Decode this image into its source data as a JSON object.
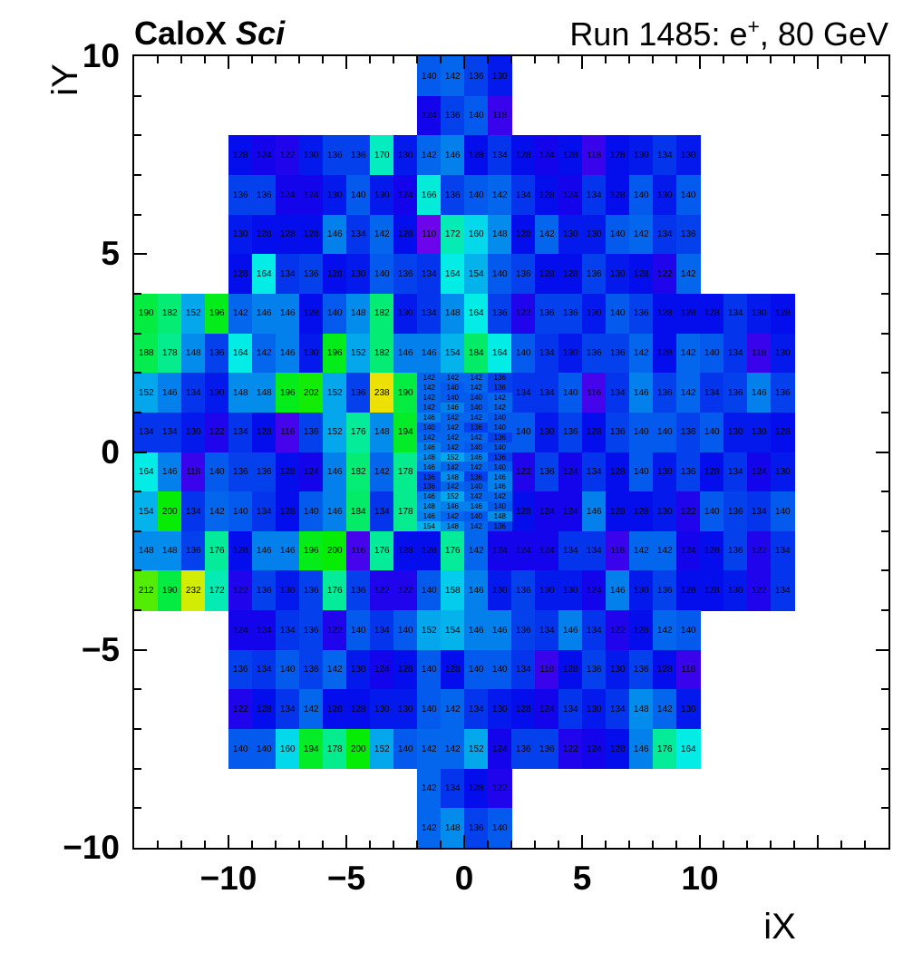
{
  "title": {
    "left_bold": "CaloX ",
    "left_italic": "Sci",
    "right_main": "Run 1485: e",
    "right_sup": "+",
    "right_tail": ", 80 GeV"
  },
  "colors": {
    "background": "#ffffff",
    "frame": "#000000",
    "cell_text": "#000000"
  },
  "chart_data": {
    "type": "heatmap",
    "title_left": "CaloX Sci",
    "title_right": "Run 1485: e+, 80 GeV",
    "xlabel": "iX",
    "ylabel": "iY",
    "xlim": [
      -14,
      18
    ],
    "ylim": [
      -10,
      10
    ],
    "xticks": [
      -10,
      -5,
      0,
      5,
      10
    ],
    "yticks": [
      -10,
      -5,
      0,
      5,
      10
    ],
    "minor_tick_step": 1,
    "grid": false,
    "palette": {
      "zmin": 110,
      "zmax": 238,
      "hue_at_min": 267,
      "hue_at_max": 57,
      "saturation": 97,
      "lightness": 47
    },
    "rows": [
      {
        "y": 9,
        "segments": [
          {
            "x0": -2,
            "values": [
              140,
              142,
              136,
              130
            ]
          }
        ]
      },
      {
        "y": 8,
        "segments": [
          {
            "x0": -2,
            "values": [
              124,
              136,
              140,
              118
            ]
          }
        ]
      },
      {
        "y": 7,
        "segments": [
          {
            "x0": -10,
            "values": [
              128,
              124,
              122,
              130,
              136,
              136,
              170,
              130,
              142,
              146,
              128,
              134,
              128,
              124,
              128,
              118,
              128,
              130,
              134,
              130
            ]
          }
        ]
      },
      {
        "y": 6,
        "segments": [
          {
            "x0": -10,
            "values": [
              136,
              136,
              124,
              124,
              130,
              140,
              130,
              124,
              166,
              136,
              140,
              142,
              134,
              128,
              124,
              134,
              128,
              140,
              130,
              140
            ]
          }
        ]
      },
      {
        "y": 5,
        "segments": [
          {
            "x0": -10,
            "values": [
              130,
              128,
              128,
              128,
              146,
              134,
              142,
              128,
              110,
              172,
              160,
              148,
              128,
              142,
              130,
              130,
              140,
              142,
              134,
              136
            ]
          }
        ]
      },
      {
        "y": 4,
        "segments": [
          {
            "x0": -10,
            "values": [
              128,
              164,
              134,
              136,
              128,
              130,
              140,
              136,
              134,
              164,
              154,
              140,
              136,
              128,
              128,
              136,
              130,
              128,
              122,
              142
            ]
          }
        ]
      },
      {
        "y": 3,
        "segments": [
          {
            "x0": -14,
            "values": [
              190,
              182,
              152,
              196,
              142,
              146,
              146,
              128,
              140,
              148,
              182,
              130,
              134,
              148,
              164,
              136,
              122,
              136,
              136,
              130,
              140,
              136,
              128,
              128,
              128,
              134,
              130,
              128
            ]
          }
        ]
      },
      {
        "y": 2,
        "segments": [
          {
            "x0": -14,
            "values": [
              188,
              178,
              148,
              136,
              164,
              142,
              146,
              130,
              196,
              152,
              182,
              146,
              146,
              154,
              184,
              164,
              140,
              134,
              130,
              136,
              136,
              142,
              128,
              142,
              140,
              134,
              118,
              130
            ]
          }
        ]
      },
      {
        "y": 1,
        "segments": [
          {
            "x0": -14,
            "values": [
              152,
              146,
              134,
              130,
              148,
              148,
              196,
              202,
              152,
              136,
              238,
              190
            ]
          },
          {
            "x0": 2,
            "values": [
              134,
              134,
              140,
              116,
              134,
              146,
              136,
              142,
              134,
              136,
              146,
              136
            ]
          }
        ]
      },
      {
        "y": 0,
        "segments": [
          {
            "x0": -14,
            "values": [
              134,
              134,
              130,
              122,
              134,
              128,
              116,
              136,
              152,
              176,
              148,
              194
            ]
          },
          {
            "x0": 2,
            "values": [
              140,
              130,
              136,
              128,
              136,
              140,
              140,
              136,
              140,
              130,
              130,
              128
            ]
          }
        ]
      },
      {
        "y": -1,
        "segments": [
          {
            "x0": -14,
            "values": [
              164,
              146,
              118,
              140,
              136,
              136,
              128,
              124,
              146,
              182,
              142,
              178
            ]
          },
          {
            "x0": 2,
            "values": [
              122,
              136,
              124,
              134,
              128,
              140,
              130,
              136,
              128,
              134,
              124,
              130
            ]
          }
        ]
      },
      {
        "y": -2,
        "segments": [
          {
            "x0": -14,
            "values": [
              154,
              200,
              134,
              142,
              140,
              134,
              128,
              140,
              146,
              184,
              134,
              178
            ]
          },
          {
            "x0": 2,
            "values": [
              128,
              124,
              124,
              146,
              128,
              128,
              130,
              122,
              140,
              136,
              134,
              140
            ]
          }
        ]
      },
      {
        "y": -3,
        "segments": [
          {
            "x0": -14,
            "values": [
              148,
              148,
              136,
              176,
              128,
              146,
              146,
              196,
              200,
              116,
              176,
              128,
              128,
              176,
              142,
              124,
              124,
              124,
              134,
              134,
              118,
              142,
              142,
              124,
              128,
              136,
              122,
              134
            ]
          }
        ]
      },
      {
        "y": -4,
        "segments": [
          {
            "x0": -14,
            "values": [
              212,
              190,
              232,
              172,
              122,
              136,
              130,
              136,
              176,
              136,
              122,
              122,
              140,
              158,
              146,
              130,
              136,
              130,
              130,
              124,
              146,
              130,
              136,
              128,
              128,
              130,
              122,
              134
            ]
          }
        ]
      },
      {
        "y": -5,
        "segments": [
          {
            "x0": -10,
            "values": [
              124,
              124,
              134,
              136,
              122,
              140,
              134,
              140,
              152,
              154,
              146,
              146,
              136,
              134,
              146,
              134,
              122,
              128,
              142,
              140
            ]
          }
        ]
      },
      {
        "y": -6,
        "segments": [
          {
            "x0": -10,
            "values": [
              136,
              134,
              140,
              136,
              142,
              130,
              124,
              128,
              140,
              128,
              140,
              140,
              134,
              118,
              128,
              136,
              130,
              136,
              128,
              118
            ]
          }
        ]
      },
      {
        "y": -7,
        "segments": [
          {
            "x0": -10,
            "values": [
              122,
              128,
              134,
              142,
              128,
              128,
              130,
              130,
              140,
              142,
              134,
              130,
              128,
              124,
              134,
              130,
              134,
              148,
              142,
              130
            ]
          }
        ]
      },
      {
        "y": -8,
        "segments": [
          {
            "x0": -10,
            "values": [
              140,
              140,
              160,
              194,
              178,
              200,
              152,
              140,
              142,
              142,
              152,
              124,
              136,
              136,
              122,
              124,
              128,
              146,
              176,
              164
            ]
          }
        ]
      },
      {
        "y": -9,
        "segments": [
          {
            "x0": -2,
            "values": [
              142,
              134,
              128,
              122
            ]
          }
        ]
      },
      {
        "y": -10,
        "segments": [
          {
            "x0": -2,
            "values": [
              142,
              148,
              136,
              140
            ]
          }
        ]
      }
    ],
    "fine_block": {
      "x0": -2,
      "cols": 4,
      "cell_w": 1,
      "cell_h": 0.25,
      "rows": [
        {
          "y": 1.75,
          "values": [
            142,
            142,
            142,
            136
          ]
        },
        {
          "y": 1.5,
          "values": [
            142,
            140,
            142,
            136
          ]
        },
        {
          "y": 1.25,
          "values": [
            142,
            140,
            140,
            142
          ]
        },
        {
          "y": 1.0,
          "values": [
            142,
            146,
            140,
            142
          ]
        },
        {
          "y": 0.75,
          "values": [
            146,
            142,
            142,
            140
          ]
        },
        {
          "y": 0.5,
          "values": [
            140,
            142,
            136,
            140
          ]
        },
        {
          "y": 0.25,
          "values": [
            142,
            142,
            142,
            136
          ]
        },
        {
          "y": 0.0,
          "values": [
            146,
            142,
            140,
            140
          ]
        },
        {
          "y": -0.25,
          "values": [
            148,
            152,
            146,
            136
          ]
        },
        {
          "y": -0.5,
          "values": [
            146,
            142,
            142,
            140
          ]
        },
        {
          "y": -0.75,
          "values": [
            136,
            148,
            136,
            146
          ]
        },
        {
          "y": -1.0,
          "values": [
            136,
            142,
            140,
            146
          ]
        },
        {
          "y": -1.25,
          "values": [
            146,
            152,
            142,
            142
          ]
        },
        {
          "y": -1.5,
          "values": [
            148,
            146,
            146,
            140
          ]
        },
        {
          "y": -1.75,
          "values": [
            146,
            142,
            140,
            148
          ]
        },
        {
          "y": -2.0,
          "values": [
            154,
            148,
            142,
            136
          ]
        }
      ]
    }
  }
}
